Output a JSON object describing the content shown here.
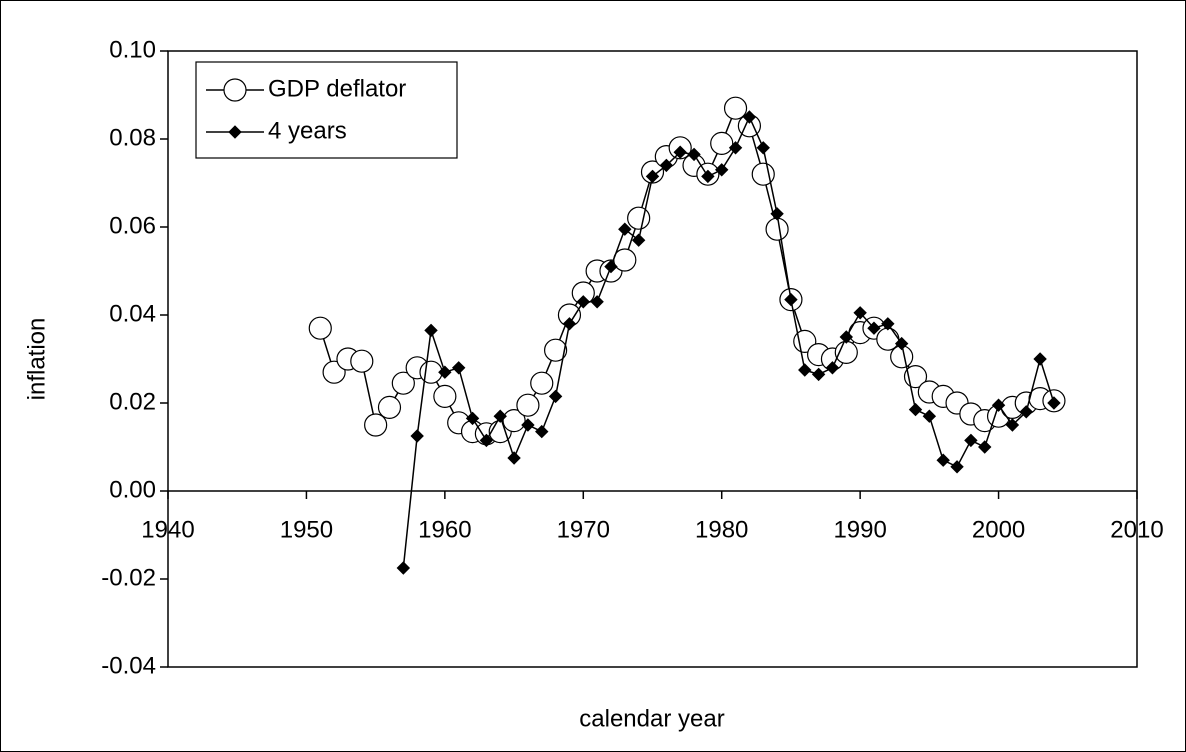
{
  "chart_data": {
    "type": "line",
    "x_label": "calendar year",
    "y_label": "inflation",
    "x": [
      1951,
      1952,
      1953,
      1954,
      1955,
      1956,
      1957,
      1958,
      1959,
      1960,
      1961,
      1962,
      1963,
      1964,
      1965,
      1966,
      1967,
      1968,
      1969,
      1970,
      1971,
      1972,
      1973,
      1974,
      1975,
      1976,
      1977,
      1978,
      1979,
      1980,
      1981,
      1982,
      1983,
      1984,
      1985,
      1986,
      1987,
      1988,
      1989,
      1990,
      1991,
      1992,
      1993,
      1994,
      1995,
      1996,
      1997,
      1998,
      1999,
      2000,
      2001,
      2002,
      2003,
      2004
    ],
    "series": [
      {
        "name": "GDP deflator",
        "color": "#000000",
        "marker": "circle",
        "values": [
          0.037,
          0.027,
          0.03,
          0.0295,
          0.015,
          0.019,
          0.0245,
          0.028,
          0.027,
          0.0215,
          0.0155,
          0.0135,
          0.013,
          0.0135,
          0.016,
          0.0195,
          0.0245,
          0.032,
          0.04,
          0.045,
          0.05,
          0.05,
          0.0525,
          0.062,
          0.0725,
          0.076,
          0.078,
          0.074,
          0.072,
          0.079,
          0.087,
          0.083,
          0.072,
          0.0595,
          0.0435,
          0.034,
          0.031,
          0.03,
          0.0315,
          0.036,
          0.037,
          0.0345,
          0.0305,
          0.026,
          0.0225,
          0.0215,
          0.02,
          0.0175,
          0.016,
          0.017,
          0.019,
          0.02,
          0.021,
          0.0205
        ]
      },
      {
        "name": "4 years",
        "color": "#000000",
        "marker": "diamond",
        "values": [
          null,
          null,
          null,
          null,
          null,
          null,
          -0.0175,
          0.0125,
          0.0365,
          0.027,
          0.028,
          0.0165,
          0.0115,
          0.017,
          0.0075,
          0.015,
          0.0135,
          0.0215,
          0.038,
          0.043,
          0.043,
          0.051,
          0.0595,
          0.057,
          0.0715,
          0.074,
          0.077,
          0.0765,
          0.0715,
          0.073,
          0.078,
          0.085,
          0.078,
          0.063,
          0.0435,
          0.0275,
          0.0265,
          0.028,
          0.035,
          0.0405,
          0.037,
          0.038,
          0.0335,
          0.0185,
          0.017,
          0.007,
          0.0055,
          0.0115,
          0.01,
          0.0195,
          0.015,
          0.018,
          0.03,
          0.02
        ]
      }
    ],
    "xlim": [
      1940,
      2010
    ],
    "xticks": [
      1940,
      1950,
      1960,
      1970,
      1980,
      1990,
      2000,
      2010
    ],
    "ylim": [
      -0.04,
      0.1
    ],
    "yticks": [
      {
        "value": -0.04,
        "label": "-0.04"
      },
      {
        "value": -0.02,
        "label": "-0.02"
      },
      {
        "value": 0,
        "label": "0.00"
      },
      {
        "value": 0.02,
        "label": "0.02"
      },
      {
        "value": 0.04,
        "label": "0.04"
      },
      {
        "value": 0.06,
        "label": "0.06"
      },
      {
        "value": 0.08,
        "label": "0.08"
      },
      {
        "value": 0.1,
        "label": "0.10"
      }
    ],
    "legend": "top-left"
  }
}
